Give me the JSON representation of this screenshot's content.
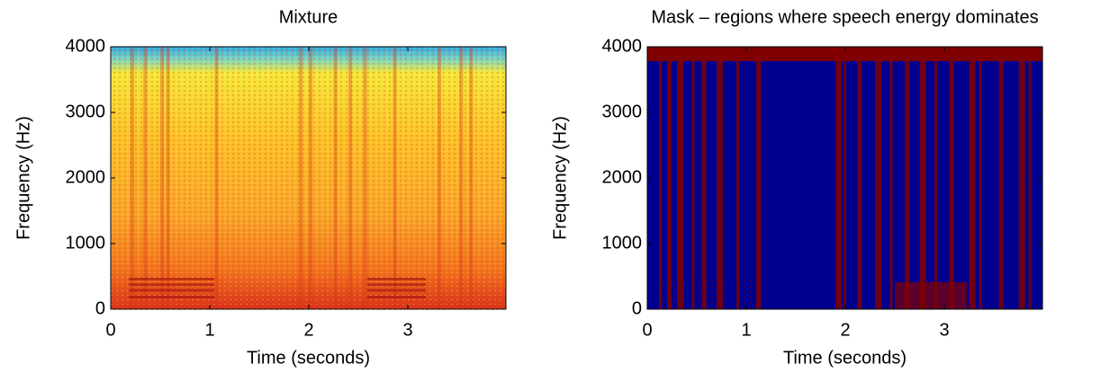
{
  "chart_data": [
    {
      "type": "spectrogram",
      "title": "Mixture",
      "xlabel": "Time (seconds)",
      "ylabel": "Frequency (Hz)",
      "xlim": [
        0,
        3.99
      ],
      "ylim": [
        0,
        4000
      ],
      "xticks": [
        0,
        1,
        2,
        3
      ],
      "yticks": [
        0,
        1000,
        2000,
        3000,
        4000
      ]
    },
    {
      "type": "mask",
      "title": "Mask – regions where speech energy dominates",
      "xlabel": "Time (seconds)",
      "ylabel": "Frequency (Hz)",
      "xlim": [
        0,
        3.99
      ],
      "ylim": [
        0,
        4000
      ],
      "xticks": [
        0,
        1,
        2,
        3
      ],
      "yticks": [
        0,
        1000,
        2000,
        3000,
        4000
      ]
    }
  ]
}
